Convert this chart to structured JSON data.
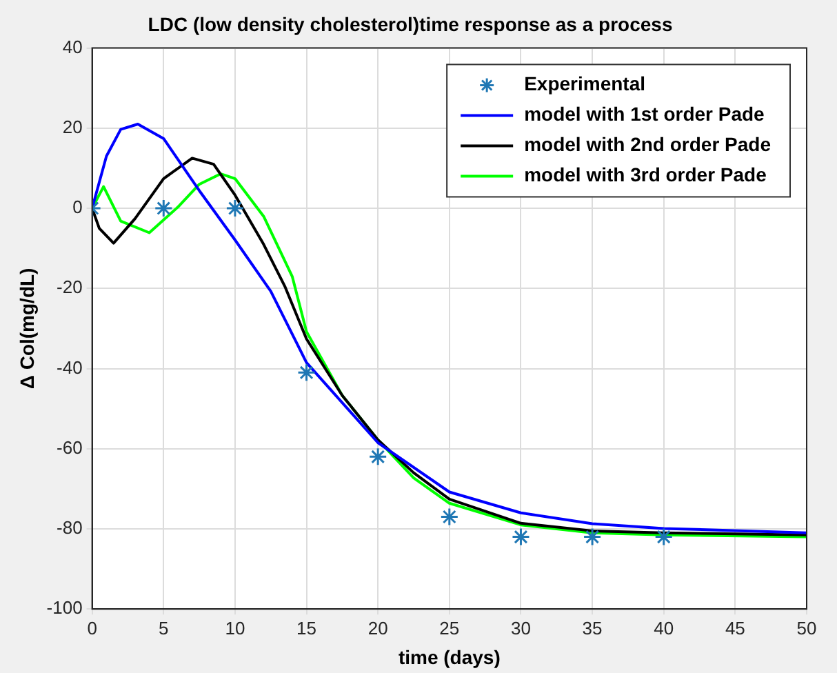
{
  "chart_data": {
    "type": "line",
    "title": "LDC (low density cholesterol)time response as a process",
    "xlabel": "time (days)",
    "ylabel": "Δ Col(mg/dL)",
    "xlim": [
      0,
      50
    ],
    "xticks": [
      0,
      5,
      10,
      15,
      20,
      25,
      30,
      35,
      40,
      45,
      50
    ],
    "ylim": [
      -100,
      40
    ],
    "yticks": [
      -100,
      -80,
      -60,
      -40,
      -20,
      0,
      20,
      40
    ],
    "grid": true,
    "legend": "top right",
    "series": [
      {
        "name": "Experimental",
        "type": "scatter",
        "marker": "cross",
        "color": "#1f77b4",
        "x": [
          0,
          5,
          10,
          15,
          20,
          25,
          30,
          35,
          40
        ],
        "values": [
          0,
          0,
          0,
          -41,
          -62,
          -77,
          -82,
          -82,
          -82
        ]
      },
      {
        "name": "model with 1st order Pade",
        "color": "#0000ff",
        "x": [
          0,
          1,
          2,
          3.2,
          5,
          7.5,
          10,
          12.5,
          15,
          20,
          25,
          30,
          35,
          40,
          50
        ],
        "values": [
          0,
          13,
          19.7,
          21,
          17.4,
          4.4,
          -7.9,
          -20.7,
          -38.5,
          -58.5,
          -70.8,
          -76,
          -78.7,
          -79.9,
          -81
        ]
      },
      {
        "name": "model with 2nd order Pade",
        "color": "#000000",
        "x": [
          0,
          0.5,
          1.5,
          3,
          5,
          7,
          8.5,
          10,
          12,
          13.5,
          15,
          17.5,
          20,
          22.5,
          25,
          30,
          35,
          40,
          50
        ],
        "values": [
          0,
          -5,
          -8.7,
          -2.6,
          7.4,
          12.5,
          11,
          3.3,
          -9,
          -19.6,
          -32.6,
          -46.7,
          -57.8,
          -66,
          -72.6,
          -78.6,
          -80.5,
          -81,
          -81.5
        ]
      },
      {
        "name": "model with 3rd order Pade",
        "color": "#00ff00",
        "x": [
          0,
          0.8,
          2,
          4,
          6,
          7.5,
          9,
          10,
          12,
          14,
          15,
          17.5,
          20,
          22.5,
          25,
          30,
          35,
          40,
          50
        ],
        "values": [
          0,
          5.4,
          -3.2,
          -6.1,
          0.3,
          6,
          8.6,
          7.4,
          -2,
          -17,
          -30.8,
          -46.7,
          -57.8,
          -67.3,
          -73.6,
          -79,
          -81,
          -81.5,
          -82
        ]
      }
    ]
  }
}
